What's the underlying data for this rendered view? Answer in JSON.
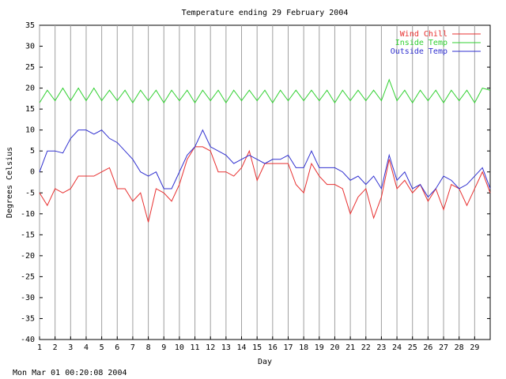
{
  "chart_data": {
    "type": "line",
    "title": "Temperature ending 29 February 2004",
    "x_label": "Day",
    "y_label": "Degrees Celsius",
    "footer": "Mon Mar 01 00:20:08 2004",
    "x": [
      1,
      1.5,
      2,
      2.5,
      3,
      3.5,
      4,
      4.5,
      5,
      5.5,
      6,
      6.5,
      7,
      7.5,
      8,
      8.5,
      9,
      9.5,
      10,
      10.5,
      11,
      11.5,
      12,
      12.5,
      13,
      13.5,
      14,
      14.5,
      15,
      15.5,
      16,
      16.5,
      17,
      17.5,
      18,
      18.5,
      19,
      19.5,
      20,
      20.5,
      21,
      21.5,
      22,
      22.5,
      23,
      23.5,
      24,
      24.5,
      25,
      25.5,
      26,
      26.5,
      27,
      27.5,
      28,
      28.5,
      29,
      29.5,
      30
    ],
    "series": [
      {
        "name": "Wind Chill",
        "color": "#e83030",
        "values": [
          -5,
          -8,
          -4,
          -5,
          -4,
          -1,
          -1,
          -1,
          0,
          1,
          -4,
          -4,
          -7,
          -5,
          -12,
          -4,
          -5,
          -7,
          -3,
          3,
          6,
          6,
          5,
          0,
          0,
          -1,
          1,
          5,
          -2,
          2,
          2,
          2,
          2,
          -3,
          -5,
          2,
          -1,
          -3,
          -3,
          -4,
          -10,
          -6,
          -4,
          -11,
          -6,
          3,
          -4,
          -2,
          -5,
          -3,
          -7,
          -4,
          -9,
          -3,
          -4,
          -8,
          -4,
          0,
          -5
        ]
      },
      {
        "name": "Inside Temp",
        "color": "#30d030",
        "values": [
          16.5,
          19.5,
          17,
          20,
          17,
          20,
          17,
          20,
          17,
          19.5,
          17,
          19.5,
          16.5,
          19.5,
          17,
          19.5,
          16.5,
          19.5,
          17,
          19.5,
          16.5,
          19.5,
          17,
          19.5,
          16.5,
          19.5,
          17,
          19.5,
          17,
          19.5,
          16.5,
          19.5,
          17,
          19.5,
          17,
          19.5,
          17,
          19.5,
          16.5,
          19.5,
          17,
          19.5,
          17,
          19.5,
          17,
          22,
          17,
          19.5,
          16.5,
          19.5,
          17,
          19.5,
          16.5,
          19.5,
          17,
          19.5,
          16.5,
          20,
          19.5
        ]
      },
      {
        "name": "Outside Temp",
        "color": "#3030d0",
        "values": [
          0,
          5,
          5,
          4.5,
          8,
          10,
          10,
          9,
          10,
          8,
          7,
          5,
          3,
          0,
          -1,
          0,
          -4,
          -4,
          0,
          4,
          6,
          10,
          6,
          5,
          4,
          2,
          3,
          4,
          3,
          2,
          3,
          3,
          4,
          1,
          1,
          5,
          1,
          1,
          1,
          0,
          -2,
          -1,
          -3,
          -1,
          -4,
          4,
          -2,
          0,
          -4,
          -3,
          -6,
          -4,
          -1,
          -2,
          -4,
          -3,
          -1,
          1,
          -4
        ]
      }
    ],
    "xlim": [
      1,
      30
    ],
    "xticks": [
      1,
      2,
      3,
      4,
      5,
      6,
      7,
      8,
      9,
      10,
      11,
      12,
      13,
      14,
      15,
      16,
      17,
      18,
      19,
      20,
      21,
      22,
      23,
      24,
      25,
      26,
      27,
      28,
      29
    ],
    "ylim": [
      -40,
      35
    ],
    "yticks": [
      -40,
      -35,
      -30,
      -25,
      -20,
      -15,
      -10,
      -5,
      0,
      5,
      10,
      15,
      20,
      25,
      30,
      35
    ],
    "grid": "x",
    "legend": "top-right"
  }
}
